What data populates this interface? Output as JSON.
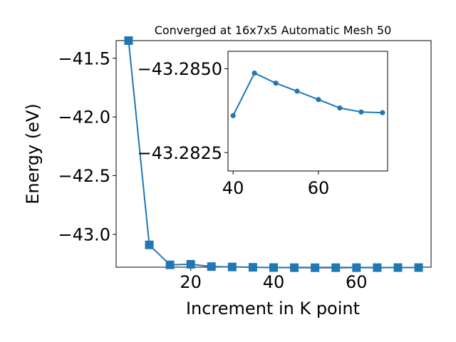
{
  "chart_data": [
    {
      "type": "line",
      "title": "Converged at 16x7x5 Automatic Mesh 50",
      "xlabel": "Increment in K point",
      "ylabel": "Energy (eV)",
      "xlim": [
        2,
        78
      ],
      "ylim": [
        -43.28,
        -41.35
      ],
      "xticks": [
        "20",
        "40",
        "60"
      ],
      "yticks": [
        "−41.5",
        "−42.0",
        "−42.5",
        "−43.0"
      ],
      "xtick_values": [
        20,
        40,
        60
      ],
      "ytick_values": [
        -41.5,
        -42.0,
        -42.5,
        -43.0
      ],
      "marker": "square",
      "color": "#1f77b4",
      "x": [
        5,
        10,
        15,
        20,
        25,
        30,
        35,
        40,
        45,
        50,
        55,
        60,
        65,
        70,
        75
      ],
      "y": [
        -41.35,
        -43.09,
        -43.26,
        -43.255,
        -43.275,
        -43.278,
        -43.281,
        -43.283,
        -43.284,
        -43.2845,
        -43.2842,
        -43.2838,
        -43.2836,
        -43.2833,
        -43.2833
      ],
      "grid": false
    },
    {
      "type": "line",
      "title": "",
      "xlabel": "",
      "ylabel": "",
      "xlim": [
        38.8,
        76.2
      ],
      "ylim": [
        -43.28195,
        -43.28552
      ],
      "xticks": [
        "40",
        "60"
      ],
      "yticks": [
        "−43.2850",
        "−43.2825"
      ],
      "xtick_values": [
        40,
        60
      ],
      "ytick_values": [
        -43.285,
        -43.2825
      ],
      "marker": "circle",
      "color": "#1f77b4",
      "x": [
        40,
        45,
        50,
        55,
        60,
        65,
        70,
        75
      ],
      "y": [
        -43.2836,
        -43.28487,
        -43.28457,
        -43.28433,
        -43.28408,
        -43.28383,
        -43.28371,
        -43.28369
      ],
      "grid": false
    }
  ]
}
